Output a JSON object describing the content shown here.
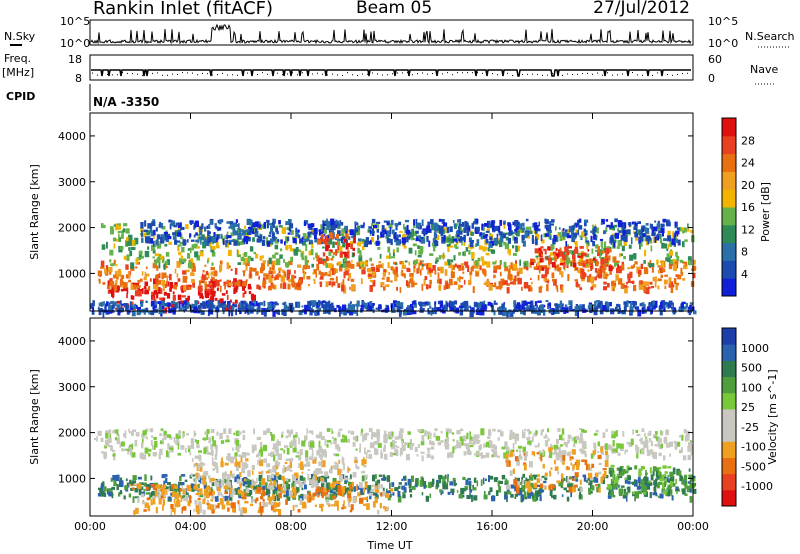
{
  "header": {
    "title": "Rankin Inlet (fitACF)",
    "beam": "Beam 05",
    "date": "27/Jul/2012"
  },
  "top_panels": {
    "nsky_label": "N.Sky",
    "nsearch_label": "N.Search",
    "noise_ticks_left": [
      "10^5",
      "10^0"
    ],
    "noise_ticks_right": [
      "10^5",
      "10^0"
    ],
    "freq_label_line1": "Freq.",
    "freq_label_line2": "[MHz]",
    "freq_ticks": [
      "18",
      "8"
    ],
    "nave_label": "Nave",
    "nave_ticks": [
      "60",
      "0"
    ],
    "cpid_label": "CPID",
    "cpid_value": "N/A  -3350"
  },
  "chart_data": [
    {
      "type": "heatmap",
      "title": "",
      "xlabel": "",
      "ylabel": "Slant Range [km]",
      "yticks": [
        "1000",
        "2000",
        "3000",
        "4000"
      ],
      "ylim": [
        180,
        4500
      ],
      "colorbar": {
        "label": "Power [dB]",
        "ticks": [
          "4",
          "8",
          "12",
          "16",
          "20",
          "24",
          "28"
        ],
        "colors": [
          "#1020d8",
          "#1c4bb0",
          "#2a6fa8",
          "#2e8b57",
          "#66b24a",
          "#f2b400",
          "#f0a020",
          "#e87010",
          "#e84020",
          "#e01010"
        ]
      },
      "bands": [
        {
          "from_h": 0.7,
          "to_h": 6.5,
          "r_low": 250,
          "r_high": 900,
          "level": 9
        },
        {
          "from_h": 0.3,
          "to_h": 24,
          "r_low": 700,
          "r_high": 1300,
          "level": 7
        },
        {
          "from_h": 0.4,
          "to_h": 24,
          "r_low": 1200,
          "r_high": 2100,
          "level": 4
        },
        {
          "from_h": 2.0,
          "to_h": 23.5,
          "r_low": 1700,
          "r_high": 2200,
          "level": 1
        },
        {
          "from_h": 9.0,
          "to_h": 10.5,
          "r_low": 1300,
          "r_high": 1900,
          "level": 8
        },
        {
          "from_h": 17.5,
          "to_h": 21.0,
          "r_low": 1100,
          "r_high": 1600,
          "level": 8
        },
        {
          "from_h": 0.0,
          "to_h": 24,
          "r_low": 180,
          "r_high": 420,
          "level": 1
        }
      ]
    },
    {
      "type": "heatmap",
      "title": "",
      "xlabel": "Time UT",
      "ylabel": "Slant Range [km]",
      "xticks": [
        "00:00",
        "04:00",
        "08:00",
        "12:00",
        "16:00",
        "20:00",
        "00:00"
      ],
      "yticks": [
        "1000",
        "2000",
        "3000",
        "4000"
      ],
      "ylim": [
        180,
        4500
      ],
      "colorbar": {
        "label": "Velocity [m s^-1]",
        "ticks": [
          "1000",
          "500",
          "100",
          "25",
          "-25",
          "-100",
          "-500",
          "-1000"
        ],
        "colors": [
          "#1c3ea8",
          "#2b62b0",
          "#2f7a4f",
          "#4f9e3e",
          "#78c83a",
          "#c8c8c0",
          "#c8c8c0",
          "#f0a020",
          "#e87010",
          "#e84020",
          "#e01010"
        ]
      },
      "bands": [
        {
          "from_h": 0.3,
          "to_h": 24,
          "r_low": 600,
          "r_high": 1100,
          "level": 8
        },
        {
          "from_h": 1.5,
          "to_h": 12,
          "r_low": 300,
          "r_high": 900,
          "level": 3
        },
        {
          "from_h": 4.0,
          "to_h": 11,
          "r_low": 900,
          "r_high": 1500,
          "level": 4
        },
        {
          "from_h": 0.0,
          "to_h": 24,
          "r_low": 1500,
          "r_high": 2100,
          "level": 5
        },
        {
          "from_h": 16.5,
          "to_h": 20.5,
          "r_low": 800,
          "r_high": 1700,
          "level": 3
        },
        {
          "from_h": 20.5,
          "to_h": 24,
          "r_low": 700,
          "r_high": 1300,
          "level": 7
        }
      ]
    }
  ]
}
